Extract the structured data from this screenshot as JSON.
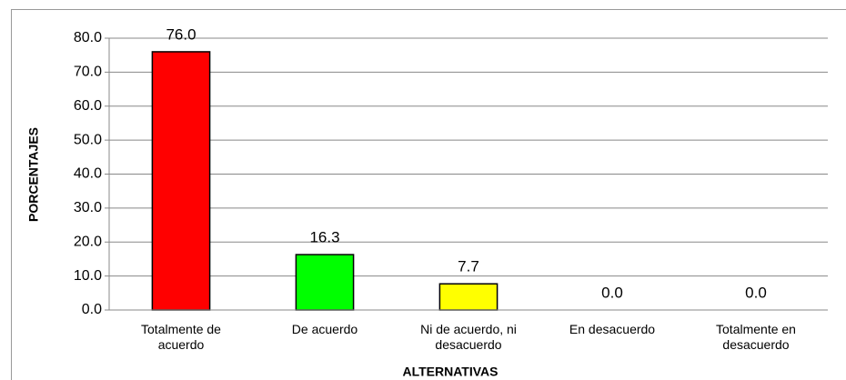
{
  "chart_data": {
    "type": "bar",
    "categories": [
      "Totalmente de acuerdo",
      "De acuerdo",
      "Ni de acuerdo, ni desacuerdo",
      "En desacuerdo",
      "Totalmente en desacuerdo"
    ],
    "values": [
      76.0,
      16.3,
      7.7,
      0.0,
      0.0
    ],
    "value_labels": [
      "76.0",
      "16.3",
      "7.7",
      "0.0",
      "0.0"
    ],
    "colors": [
      "#ff0000",
      "#00ff00",
      "#ffff00",
      "#ffffff",
      "#ffffff"
    ],
    "x_label": "ALTERNATIVAS",
    "y_label": "PORCENTAJES",
    "ylim": [
      0,
      80
    ],
    "yticks": [
      {
        "value": 0,
        "label": "0.0"
      },
      {
        "value": 10,
        "label": "10.0"
      },
      {
        "value": 20,
        "label": "20.0"
      },
      {
        "value": 30,
        "label": "30.0"
      },
      {
        "value": 40,
        "label": "40.0"
      },
      {
        "value": 50,
        "label": "50.0"
      },
      {
        "value": 60,
        "label": "60.0"
      },
      {
        "value": 70,
        "label": "70.0"
      },
      {
        "value": 80,
        "label": "80.0"
      }
    ],
    "grid": true
  }
}
